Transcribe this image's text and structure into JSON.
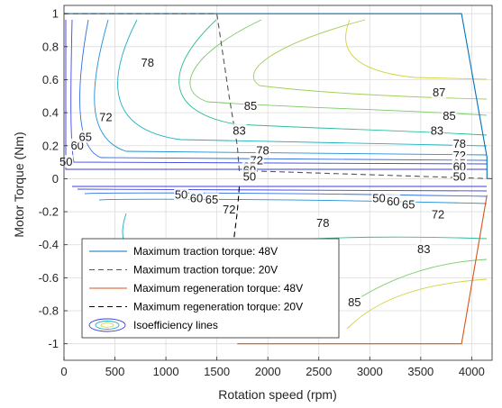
{
  "chart_data": {
    "type": "contour",
    "xlabel": "Rotation speed (rpm)",
    "ylabel": "Motor Torque (Nm)",
    "xlim": [
      0,
      4200
    ],
    "ylim": [
      -1.1,
      1.05
    ],
    "xticks": [
      0,
      500,
      1000,
      1500,
      2000,
      2500,
      3000,
      3500,
      4000
    ],
    "yticks": [
      1,
      0.8,
      0.6,
      0.4,
      0.2,
      0,
      -0.2,
      -0.4,
      -0.6,
      -0.8,
      -1
    ],
    "xtick_labels": [
      "0",
      "500",
      "1000",
      "1500",
      "2000",
      "2500",
      "3000",
      "3500",
      "4000"
    ],
    "ytick_labels": [
      "1",
      "0.8",
      "0.6",
      "0.4",
      "0.2",
      "0",
      "-0.2",
      "-0.4",
      "-0.6",
      "-0.8",
      "-1"
    ],
    "grid": true,
    "legend_position": "bottom-left",
    "legend": [
      {
        "label": "Maximum traction torque: 48V",
        "style": "solid",
        "color": "#0072bd"
      },
      {
        "label": "Maximum traction torque: 20V",
        "style": "dashed",
        "color": "#555555"
      },
      {
        "label": "Maximum regeneration torque: 48V",
        "style": "solid",
        "color": "#d95319"
      },
      {
        "label": "Maximum regeneration torque: 20V",
        "style": "dashed",
        "color": "#000000"
      },
      {
        "label": "Isoefficiency lines",
        "style": "contour",
        "color": "#3b3bd9"
      }
    ],
    "series": [
      {
        "name": "Maximum traction torque: 48V",
        "color": "#0072bd",
        "style": "solid",
        "points": [
          [
            0,
            1.0
          ],
          [
            3900,
            1.0
          ],
          [
            4150,
            0.13
          ],
          [
            4150,
            0.0
          ]
        ]
      },
      {
        "name": "Maximum traction torque: 20V",
        "color": "#555555",
        "style": "dashed",
        "points": [
          [
            0,
            1.0
          ],
          [
            1500,
            1.0
          ],
          [
            1620,
            0.5
          ],
          [
            1700,
            0.2
          ],
          [
            1720,
            0.05
          ],
          [
            4200,
            0.0
          ]
        ]
      },
      {
        "name": "Maximum regeneration torque: 48V",
        "color": "#d95319",
        "style": "solid",
        "points": [
          [
            1700,
            -1.0
          ],
          [
            3900,
            -1.0
          ],
          [
            4150,
            -0.1
          ]
        ]
      },
      {
        "name": "Maximum regeneration torque: 20V",
        "color": "#000000",
        "style": "dashed",
        "points": [
          [
            1720,
            -0.05
          ],
          [
            1700,
            -0.2
          ],
          [
            1640,
            -0.5
          ],
          [
            1600,
            -0.75
          ]
        ]
      }
    ],
    "contour_labels": [
      {
        "text": "50",
        "x": 20,
        "y": 0.1
      },
      {
        "text": "60",
        "x": 130,
        "y": 0.2
      },
      {
        "text": "65",
        "x": 210,
        "y": 0.25
      },
      {
        "text": "72",
        "x": 410,
        "y": 0.37
      },
      {
        "text": "78",
        "x": 820,
        "y": 0.7
      },
      {
        "text": "83",
        "x": 1720,
        "y": 0.29
      },
      {
        "text": "85",
        "x": 1830,
        "y": 0.44
      },
      {
        "text": "78",
        "x": 1950,
        "y": 0.17
      },
      {
        "text": "72",
        "x": 1890,
        "y": 0.11
      },
      {
        "text": "65",
        "x": 1820,
        "y": 0.07
      },
      {
        "text": "60",
        "x": 1820,
        "y": 0.05
      },
      {
        "text": "50",
        "x": 1820,
        "y": 0.01
      },
      {
        "text": "87",
        "x": 3680,
        "y": 0.52
      },
      {
        "text": "85",
        "x": 3780,
        "y": 0.38
      },
      {
        "text": "83",
        "x": 3660,
        "y": 0.29
      },
      {
        "text": "78",
        "x": 3880,
        "y": 0.21
      },
      {
        "text": "72",
        "x": 3880,
        "y": 0.14
      },
      {
        "text": "65",
        "x": 3880,
        "y": 0.09
      },
      {
        "text": "60",
        "x": 3880,
        "y": 0.07
      },
      {
        "text": "50",
        "x": 3880,
        "y": 0.01
      },
      {
        "text": "50",
        "x": 1150,
        "y": -0.1
      },
      {
        "text": "60",
        "x": 1300,
        "y": -0.12
      },
      {
        "text": "65",
        "x": 1450,
        "y": -0.13
      },
      {
        "text": "72",
        "x": 1620,
        "y": -0.19
      },
      {
        "text": "78",
        "x": 2540,
        "y": -0.27
      },
      {
        "text": "50",
        "x": 3090,
        "y": -0.12
      },
      {
        "text": "60",
        "x": 3230,
        "y": -0.14
      },
      {
        "text": "65",
        "x": 3380,
        "y": -0.16
      },
      {
        "text": "72",
        "x": 3670,
        "y": -0.22
      },
      {
        "text": "83",
        "x": 3530,
        "y": -0.43
      },
      {
        "text": "85",
        "x": 2850,
        "y": -0.75
      }
    ]
  }
}
